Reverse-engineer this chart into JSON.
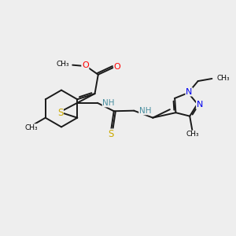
{
  "background_color": "#eeeeee",
  "bond_color": "#1a1a1a",
  "S_color": "#ccaa00",
  "O_color": "#ff0000",
  "N_color": "#0000ee",
  "NH_color": "#4a8fa0",
  "figsize": [
    3.0,
    3.0
  ],
  "dpi": 100,
  "xlim": [
    0,
    10
  ],
  "ylim": [
    0,
    10
  ]
}
